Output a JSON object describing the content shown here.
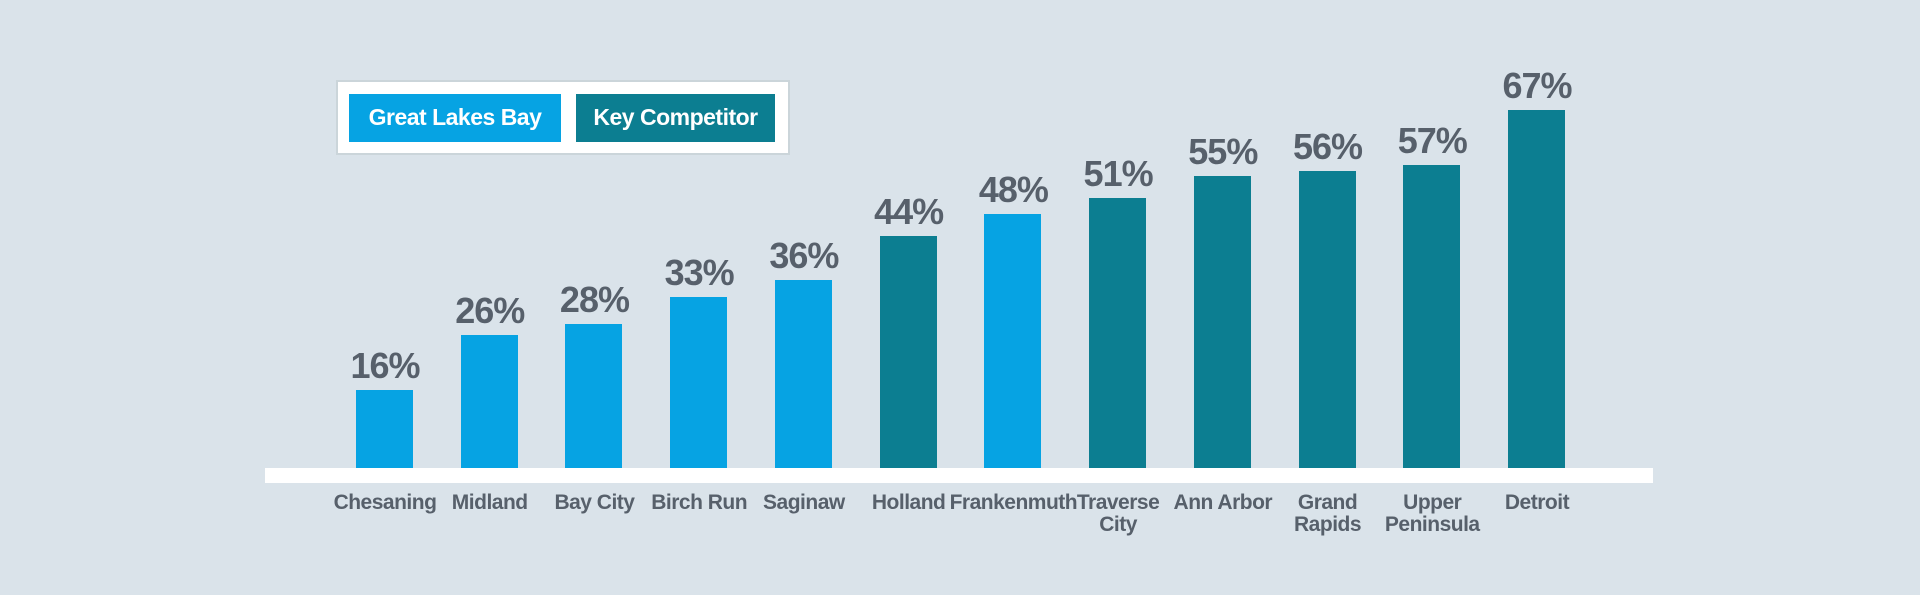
{
  "page": {
    "background_color": "#DAE3EA",
    "baseline_color": "#FFFFFF"
  },
  "legend": {
    "items": [
      {
        "label": "Great Lakes Bay",
        "color": "#06A3E3"
      },
      {
        "label": "Key Competitor",
        "color": "#0C7E91"
      }
    ]
  },
  "chart_data": {
    "type": "bar",
    "title": "",
    "xlabel": "",
    "ylabel": "",
    "unit": "%",
    "ylim": [
      0,
      100
    ],
    "grid": false,
    "legend_position": "top-left",
    "value_label_color": "#57606B",
    "axis_label_color": "#57606B",
    "categories": [
      "Chesaning",
      "Midland",
      "Bay City",
      "Birch Run",
      "Saginaw",
      "Holland",
      "Frankenmuth",
      "Traverse City",
      "Ann Arbor",
      "Grand Rapids",
      "Upper Peninsula",
      "Detroit"
    ],
    "display_labels": [
      "Chesaning",
      "Midland",
      "Bay City",
      "Birch Run",
      "Saginaw",
      "Holland",
      "Frankenmuth",
      "Traverse\nCity",
      "Ann Arbor",
      "Grand\nRapids",
      "Upper\nPeninsula",
      "Detroit"
    ],
    "values": [
      16,
      26,
      28,
      33,
      36,
      44,
      48,
      51,
      55,
      56,
      57,
      67
    ],
    "value_labels": [
      "16%",
      "26%",
      "28%",
      "33%",
      "36%",
      "44%",
      "48%",
      "51%",
      "55%",
      "56%",
      "57%",
      "67%"
    ],
    "series_membership": [
      "Great Lakes Bay",
      "Great Lakes Bay",
      "Great Lakes Bay",
      "Great Lakes Bay",
      "Great Lakes Bay",
      "Key Competitor",
      "Great Lakes Bay",
      "Key Competitor",
      "Key Competitor",
      "Key Competitor",
      "Key Competitor",
      "Key Competitor"
    ],
    "series": [
      {
        "name": "Great Lakes Bay",
        "color": "#06A3E3",
        "values_by_category": {
          "Chesaning": 16,
          "Midland": 26,
          "Bay City": 28,
          "Birch Run": 33,
          "Saginaw": 36,
          "Frankenmuth": 48
        }
      },
      {
        "name": "Key Competitor",
        "color": "#0C7E91",
        "values_by_category": {
          "Holland": 44,
          "Traverse City": 51,
          "Ann Arbor": 55,
          "Grand Rapids": 56,
          "Upper Peninsula": 57,
          "Detroit": 67
        }
      }
    ]
  }
}
